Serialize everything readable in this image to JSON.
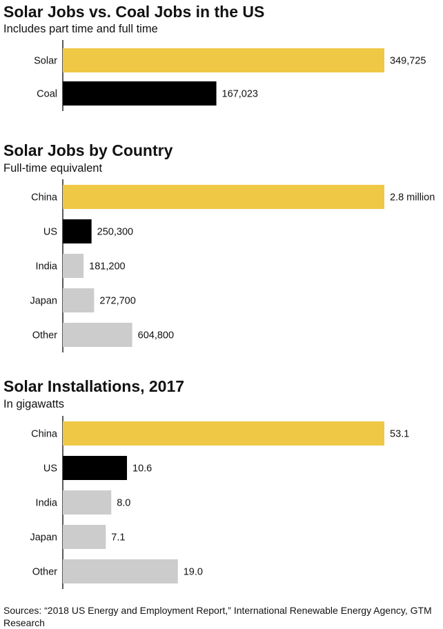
{
  "colors": {
    "solar": "#efc846",
    "us": "#000000",
    "other": "#cccccc",
    "axis": "#222222"
  },
  "chart_data": [
    {
      "type": "bar",
      "orientation": "horizontal",
      "title": "Solar Jobs vs. Coal Jobs in the US",
      "subtitle": "Includes part time and full time",
      "categories": [
        "Solar",
        "Coal"
      ],
      "values": [
        349725,
        167023
      ],
      "labels": [
        "349,725",
        "167,023"
      ],
      "colors": [
        "#efc846",
        "#000000"
      ]
    },
    {
      "type": "bar",
      "orientation": "horizontal",
      "title": "Solar Jobs by Country",
      "subtitle": "Full-time equivalent",
      "categories": [
        "China",
        "US",
        "India",
        "Japan",
        "Other"
      ],
      "values": [
        2800000,
        250300,
        181200,
        272700,
        604800
      ],
      "labels": [
        "2.8 million",
        "250,300",
        "181,200",
        "272,700",
        "604,800"
      ],
      "colors": [
        "#efc846",
        "#000000",
        "#cccccc",
        "#cccccc",
        "#cccccc"
      ]
    },
    {
      "type": "bar",
      "orientation": "horizontal",
      "title": "Solar Installations, 2017",
      "subtitle": "In gigawatts",
      "categories": [
        "China",
        "US",
        "India",
        "Japan",
        "Other"
      ],
      "values": [
        53.1,
        10.6,
        8.0,
        7.1,
        19.0
      ],
      "labels": [
        "53.1",
        "10.6",
        "8.0",
        "7.1",
        "19.0"
      ],
      "colors": [
        "#efc846",
        "#000000",
        "#cccccc",
        "#cccccc",
        "#cccccc"
      ]
    }
  ],
  "source": "Sources: “2018 US Energy and Employment Report,” International Renewable Energy Agency, GTM Research"
}
